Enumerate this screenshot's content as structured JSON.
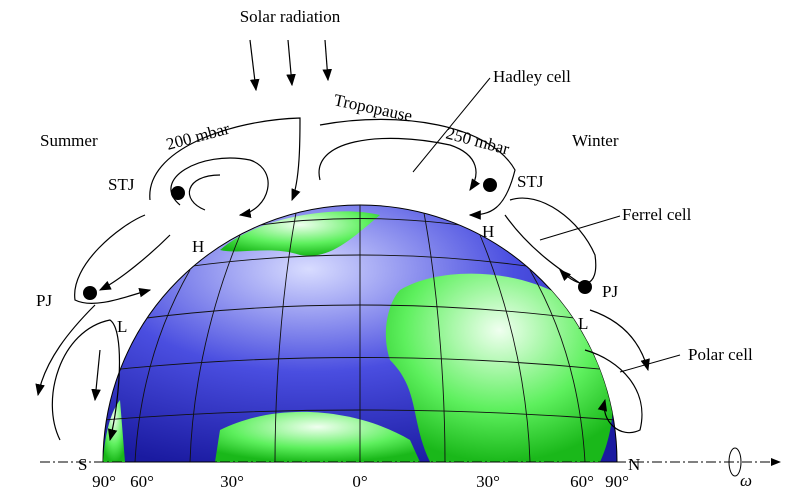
{
  "solar_radiation": "Solar radiation",
  "seasons": [
    "Summer",
    "Winter"
  ],
  "pressure_levels": [
    "200 mbar",
    "250 mbar"
  ],
  "tropopause": "Tropopause",
  "cells": [
    "Hadley cell",
    "Ferrel cell",
    "Polar cell"
  ],
  "jets": [
    "STJ",
    "STJ",
    "PJ",
    "PJ"
  ],
  "pressure_marks": [
    "H",
    "H",
    "L",
    "L"
  ],
  "poles": [
    "S",
    "N"
  ],
  "latitudes": [
    "90°",
    "60°",
    "30°",
    "0°",
    "30°",
    "60°",
    "90°"
  ],
  "rotation": "ω"
}
